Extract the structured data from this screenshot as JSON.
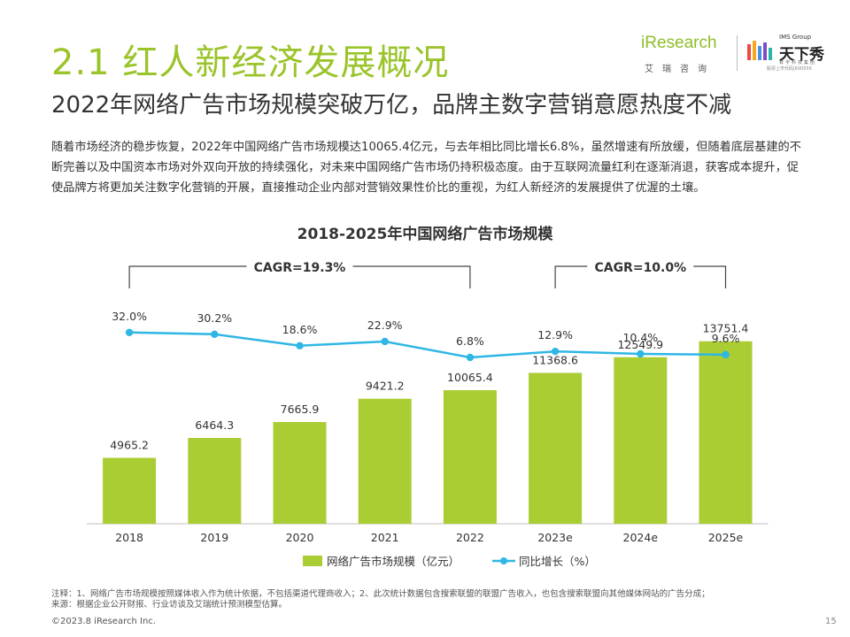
{
  "header": {
    "title": "2.1 红人新经济发展概况",
    "subtitle": "2022年网络广告市场规模突破万亿，品牌主数字营销意愿热度不减"
  },
  "logo": {
    "iresearch_word": "iResearch",
    "iresearch_cn": "艾瑞咨询",
    "group_label": "IMS Group",
    "brand_name": "天下秀",
    "brand_tagline": "数字科技集团",
    "stock_code": "股票上市代码|600556"
  },
  "intro": "随着市场经济的稳步恢复，2022年中国网络广告市场规模达10065.4亿元，与去年相比同比增长6.8%，虽然增速有所放缓，但随着底层基建的不断完善以及中国资本市场对外双向开放的持续强化，对未来中国网络广告市场仍持积极态度。由于互联网流量红利在逐渐消退，获客成本提升，促使品牌方将更加关注数字化营销的开展，直接推动企业内部对营销效果性价比的重视，为红人新经济的发展提供了优渥的土壤。",
  "chart_data": {
    "type": "bar",
    "title": "2018-2025年中国网络广告市场规模",
    "categories": [
      "2018",
      "2019",
      "2020",
      "2021",
      "2022",
      "2023e",
      "2024e",
      "2025e"
    ],
    "series": [
      {
        "name": "网络广告市场规模（亿元）",
        "type": "bar",
        "color": "#a9cd32",
        "values": [
          4965.2,
          6464.3,
          7665.9,
          9421.2,
          10065.4,
          11368.6,
          12549.9,
          13751.4
        ]
      },
      {
        "name": "同比增长（%）",
        "type": "line",
        "color": "#2fb6e5",
        "values": [
          32.0,
          30.2,
          18.6,
          22.9,
          6.8,
          12.9,
          10.4,
          9.6
        ],
        "labels": [
          "32.0%",
          "30.2%",
          "18.6%",
          "22.9%",
          "6.8%",
          "12.9%",
          "10.4%",
          "9.6%"
        ]
      }
    ],
    "annotations": [
      {
        "text": "CAGR=19.3%",
        "from": "2018",
        "to": "2022"
      },
      {
        "text": "CAGR=10.0%",
        "from": "2023e",
        "to": "2025e"
      }
    ],
    "legend_position": "bottom",
    "grid": false
  },
  "notes": {
    "note": "注释：1、网络广告市场规模按照媒体收入作为统计依据，不包括渠道代理商收入；2、此次统计数据包含搜索联盟的联盟广告收入，也包含搜索联盟向其他媒体网站的广告分成；",
    "source": "来源：根据企业公开财报、行业访谈及艾瑞统计预测模型估算。"
  },
  "footer": {
    "copyright": "©2023.8 iResearch Inc.",
    "page": "15"
  }
}
